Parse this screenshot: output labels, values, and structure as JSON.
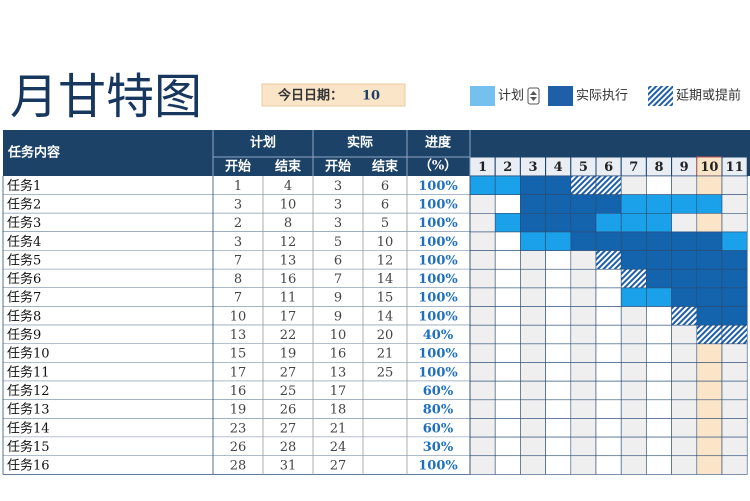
{
  "header": {
    "title": "月甘特图",
    "today_label": "今日日期：",
    "today": 10
  },
  "legend": [
    "计划",
    "实际执行",
    "延期或提前"
  ],
  "table": {
    "columns": {
      "task": "任务内容",
      "plan": "计划",
      "actual": "实际",
      "progress": "进度",
      "progress_unit": "（%）",
      "start": "开始",
      "end": "结束"
    },
    "days": [
      1,
      2,
      3,
      4,
      5,
      6,
      7,
      8,
      9,
      10,
      11
    ],
    "rows": [
      {
        "task": "任务1",
        "plan_start": 1,
        "plan_end": 4,
        "actual_start": 3,
        "actual_end": 6,
        "progress": "100%"
      },
      {
        "task": "任务2",
        "plan_start": 3,
        "plan_end": 10,
        "actual_start": 3,
        "actual_end": 6,
        "progress": "100%"
      },
      {
        "task": "任务3",
        "plan_start": 2,
        "plan_end": 8,
        "actual_start": 3,
        "actual_end": 5,
        "progress": "100%"
      },
      {
        "task": "任务4",
        "plan_start": 3,
        "plan_end": 12,
        "actual_start": 5,
        "actual_end": 10,
        "progress": "100%"
      },
      {
        "task": "任务5",
        "plan_start": 7,
        "plan_end": 13,
        "actual_start": 6,
        "actual_end": 12,
        "progress": "100%"
      },
      {
        "task": "任务6",
        "plan_start": 8,
        "plan_end": 16,
        "actual_start": 7,
        "actual_end": 14,
        "progress": "100%"
      },
      {
        "task": "任务7",
        "plan_start": 7,
        "plan_end": 11,
        "actual_start": 9,
        "actual_end": 15,
        "progress": "100%"
      },
      {
        "task": "任务8",
        "plan_start": 10,
        "plan_end": 17,
        "actual_start": 9,
        "actual_end": 14,
        "progress": "100%"
      },
      {
        "task": "任务9",
        "plan_start": 13,
        "plan_end": 22,
        "actual_start": 10,
        "actual_end": 20,
        "progress": "40%"
      },
      {
        "task": "任务10",
        "plan_start": 15,
        "plan_end": 19,
        "actual_start": 16,
        "actual_end": 21,
        "progress": "100%"
      },
      {
        "task": "任务11",
        "plan_start": 17,
        "plan_end": 27,
        "actual_start": 13,
        "actual_end": 25,
        "progress": "100%"
      },
      {
        "task": "任务12",
        "plan_start": 16,
        "plan_end": 25,
        "actual_start": 17,
        "actual_end": null,
        "progress": "60%"
      },
      {
        "task": "任务13",
        "plan_start": 19,
        "plan_end": 26,
        "actual_start": 18,
        "actual_end": null,
        "progress": "80%"
      },
      {
        "task": "任务14",
        "plan_start": 23,
        "plan_end": 27,
        "actual_start": 21,
        "actual_end": null,
        "progress": "60%"
      },
      {
        "task": "任务15",
        "plan_start": 26,
        "plan_end": 28,
        "actual_start": 24,
        "actual_end": null,
        "progress": "30%"
      },
      {
        "task": "任务16",
        "plan_start": 28,
        "plan_end": 31,
        "actual_start": 27,
        "actual_end": null,
        "progress": "100%"
      }
    ]
  }
}
